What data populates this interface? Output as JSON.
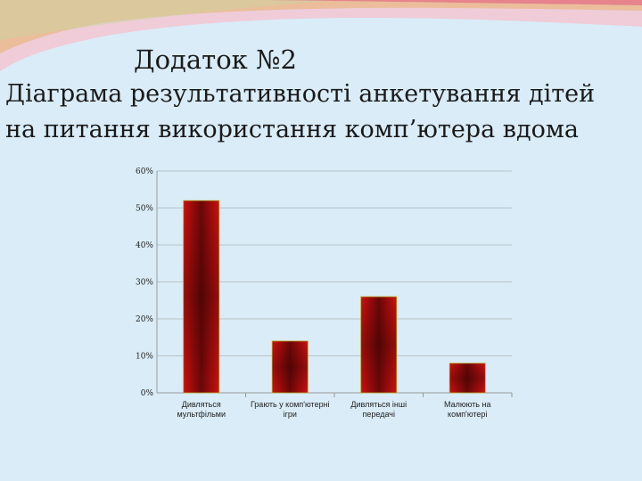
{
  "header": {
    "title_line1": "Додаток №2",
    "title_line2": "Діаграма результативності  анкетування дітей",
    "title_line3": "на питання використання комп’ютера вдома"
  },
  "colors": {
    "background": "#d9ecf7",
    "bar_light": "#cc1010",
    "bar_dark": "#6b0707",
    "bar_edge": "#b8a020",
    "grid": "#9a9a9a"
  },
  "chart_data": {
    "type": "bar",
    "categories": [
      [
        "Дивляться",
        "мультфільми"
      ],
      [
        "Грають у комп'ютерні",
        "ігри"
      ],
      [
        "Дивляться інші",
        "передачі"
      ],
      [
        "Малюють на",
        "комп'ютері"
      ]
    ],
    "values": [
      52,
      14,
      26,
      8
    ],
    "y_ticks": [
      "0%",
      "10%",
      "20%",
      "30%",
      "40%",
      "50%",
      "60%"
    ],
    "ylim": [
      0,
      60
    ],
    "grid": true,
    "legend": "none"
  }
}
